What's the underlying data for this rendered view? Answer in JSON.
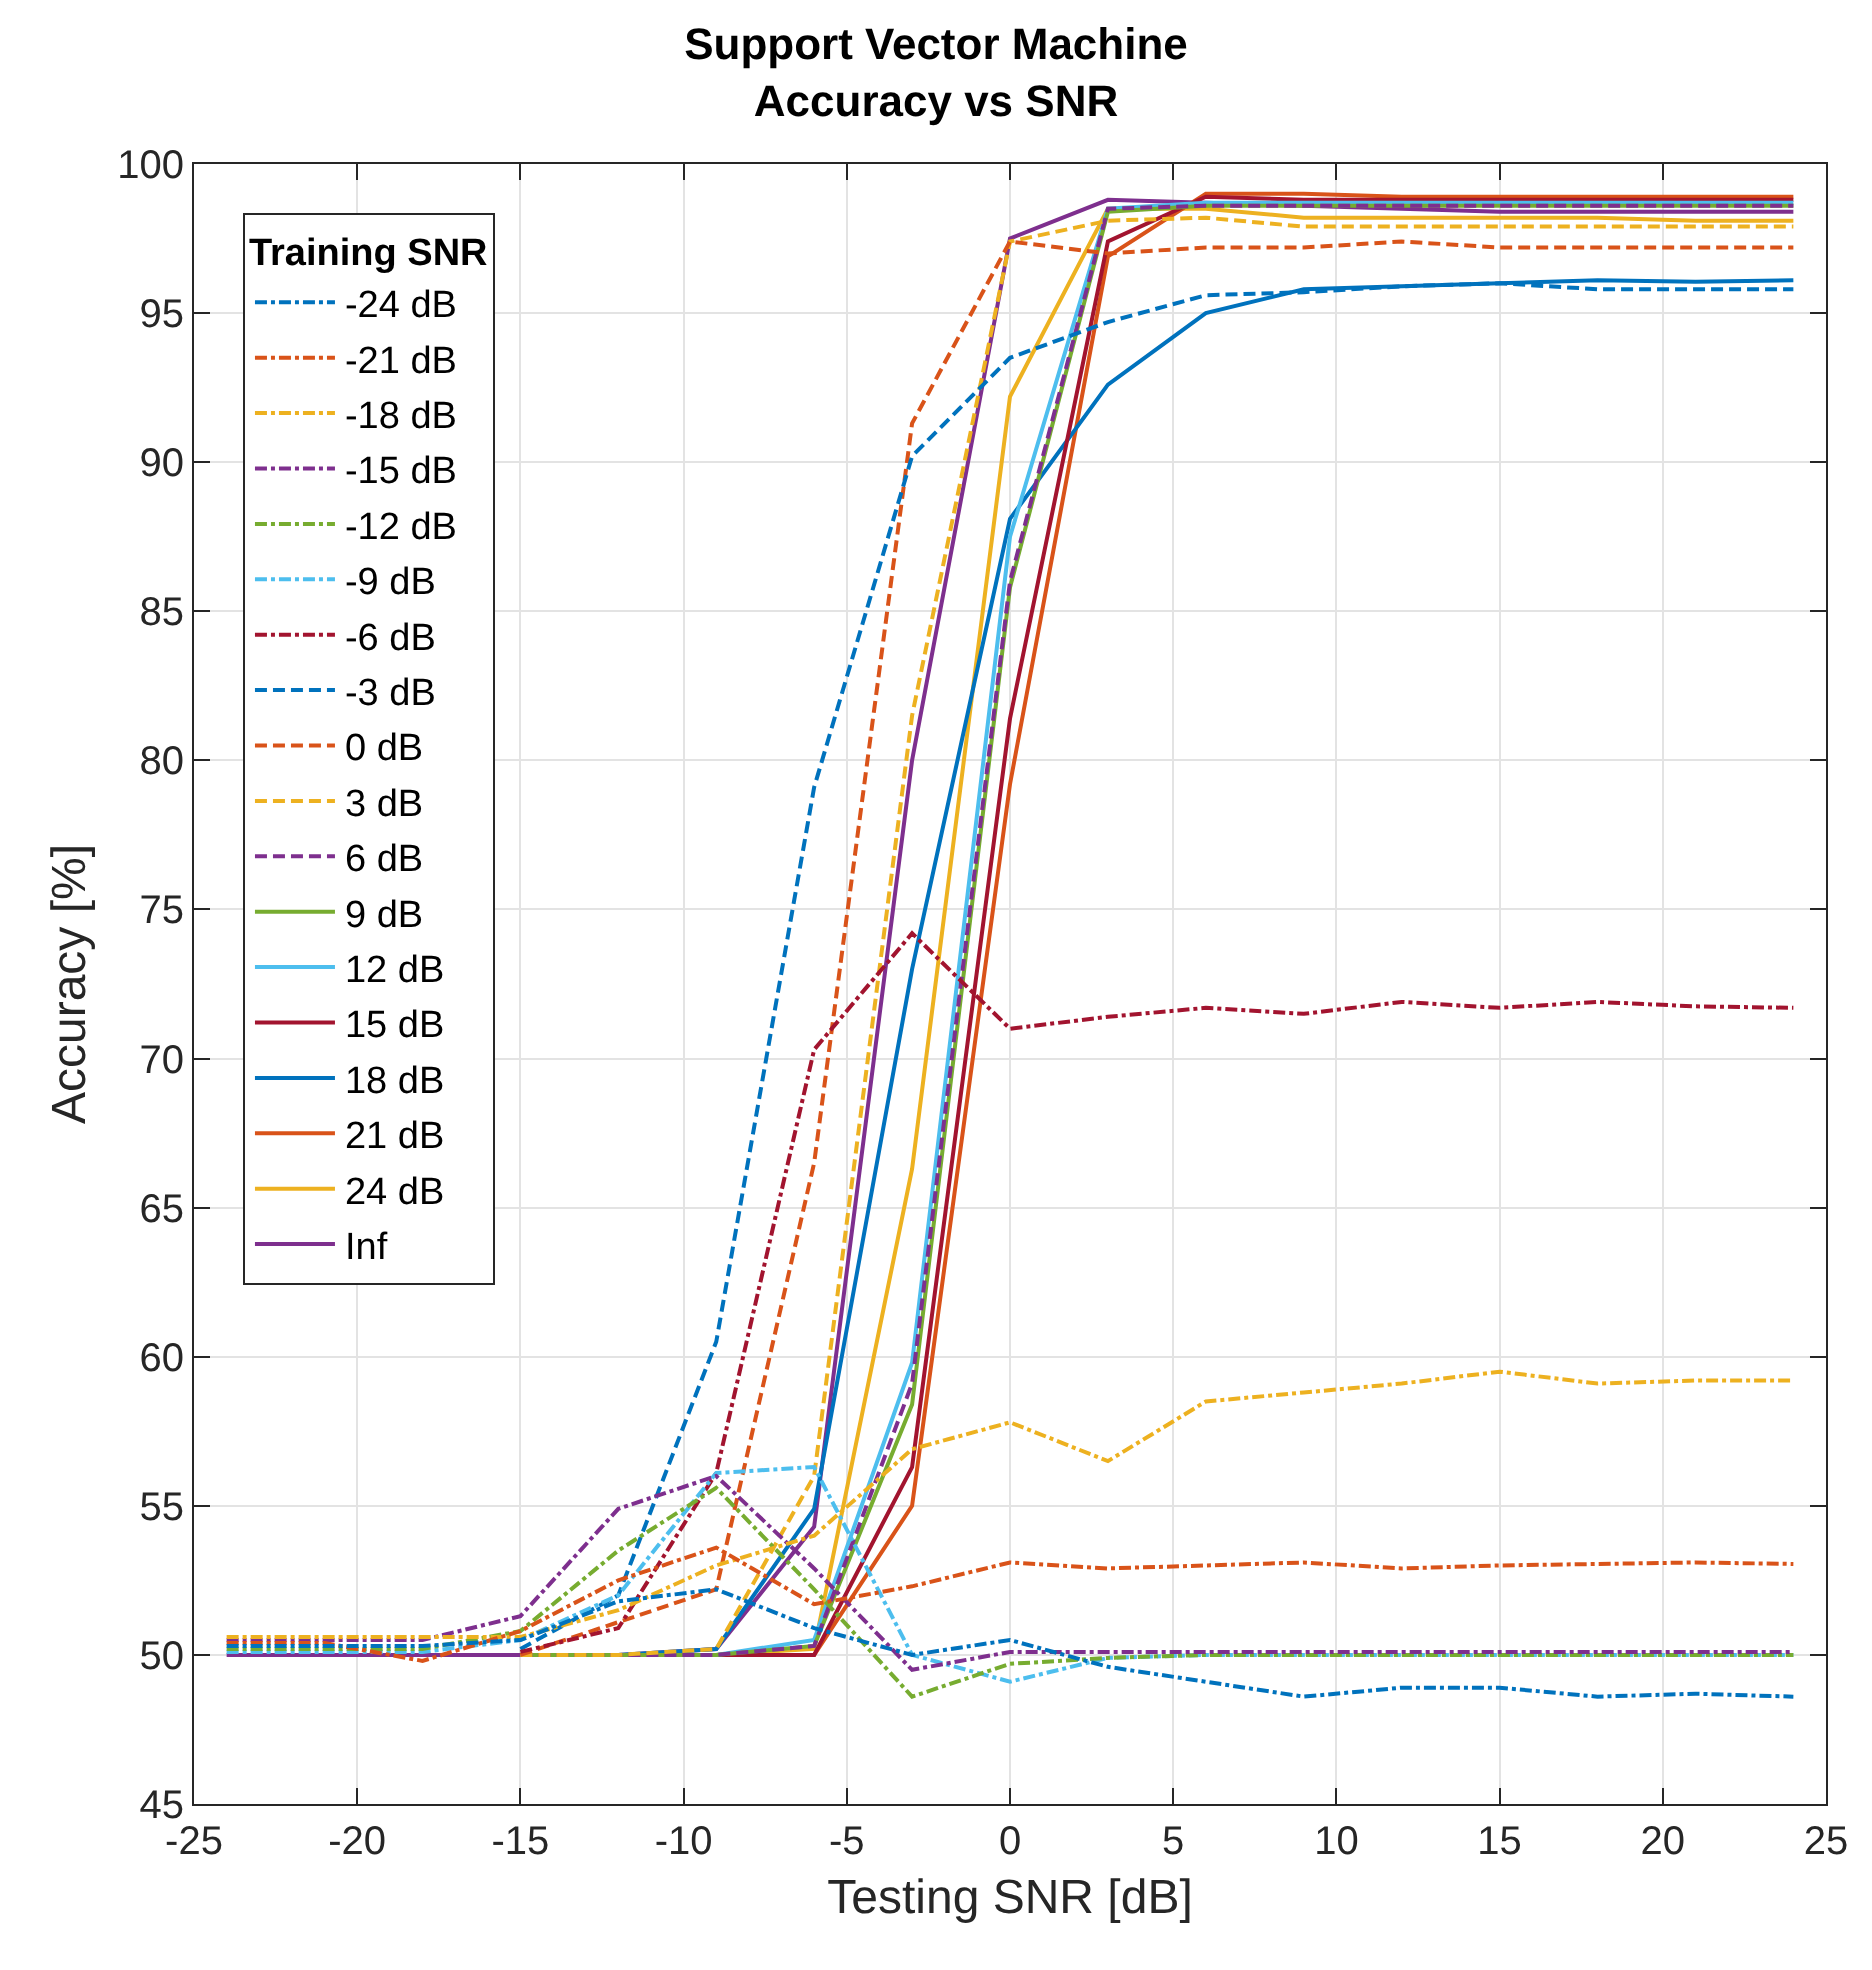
{
  "chart_data": {
    "type": "line",
    "title": "Support Vector Machine\nAccuracy vs SNR",
    "xlabel": "Testing SNR [dB]",
    "ylabel": "Accuracy [%]",
    "legend_title": "Training SNR",
    "x": [
      -24,
      -21,
      -18,
      -15,
      -12,
      -9,
      -6,
      -3,
      0,
      3,
      6,
      9,
      12,
      15,
      18,
      21,
      24
    ],
    "xlim": [
      -25,
      25
    ],
    "xticks": [
      -25,
      -20,
      -15,
      -10,
      -5,
      0,
      5,
      10,
      15,
      20,
      25
    ],
    "ylim": [
      45,
      100
    ],
    "yticks": [
      45,
      50,
      55,
      60,
      65,
      70,
      75,
      80,
      85,
      90,
      95,
      100
    ],
    "grid": true,
    "legend": "top left",
    "marker": "none",
    "series": [
      {
        "name": "-24 dB",
        "color": "#0072bd",
        "line_style": "dashdot",
        "values": [
          50.3,
          50.3,
          50.3,
          50.5,
          51.8,
          52.2,
          50.9,
          50.0,
          50.5,
          49.6,
          49.1,
          48.6,
          48.9,
          48.9,
          48.6,
          48.7,
          48.6
        ]
      },
      {
        "name": "-21 dB",
        "color": "#d95319",
        "line_style": "dashdot",
        "values": [
          50.4,
          50.4,
          49.8,
          50.8,
          52.5,
          53.6,
          51.7,
          52.3,
          53.1,
          52.9,
          53.0,
          53.1,
          52.9,
          53.0,
          53.05,
          53.1,
          53.05
        ]
      },
      {
        "name": "-18 dB",
        "color": "#edb120",
        "line_style": "dashdot",
        "values": [
          50.6,
          50.6,
          50.6,
          50.6,
          51.5,
          53.0,
          54.0,
          56.9,
          57.8,
          56.5,
          58.5,
          58.8,
          59.1,
          59.5,
          59.1,
          59.2,
          59.2
        ]
      },
      {
        "name": "-15 dB",
        "color": "#7e2f8e",
        "line_style": "dashdot",
        "values": [
          50.5,
          50.5,
          50.5,
          51.3,
          54.9,
          56.0,
          52.9,
          49.5,
          50.1,
          50.1,
          50.1,
          50.1,
          50.1,
          50.1,
          50.1,
          50.1,
          50.1
        ]
      },
      {
        "name": "-12 dB",
        "color": "#77ac30",
        "line_style": "dashdot",
        "values": [
          50.2,
          50.2,
          50.2,
          50.8,
          53.5,
          55.6,
          52.2,
          48.6,
          49.7,
          49.9,
          50.0,
          50.0,
          50.0,
          50.0,
          50.0,
          50.0,
          50.0
        ]
      },
      {
        "name": "-9 dB",
        "color": "#4dbeee",
        "line_style": "dashdot",
        "values": [
          50.1,
          50.1,
          50.1,
          50.5,
          52.0,
          56.1,
          56.3,
          50.0,
          49.1,
          49.9,
          50.0,
          50.0,
          50.0,
          50.0,
          50.0,
          50.0,
          50.0
        ]
      },
      {
        "name": "-6 dB",
        "color": "#a2142f",
        "line_style": "dashdot",
        "values": [
          null,
          null,
          null,
          50.1,
          50.9,
          56.1,
          70.3,
          74.2,
          71.0,
          71.4,
          71.7,
          71.5,
          71.9,
          71.7,
          71.9,
          71.75,
          71.7
        ]
      },
      {
        "name": "-3 dB",
        "color": "#0072bd",
        "line_style": "dashed",
        "values": [
          null,
          null,
          null,
          50.2,
          52.0,
          60.5,
          79.1,
          90.2,
          93.5,
          94.7,
          95.6,
          95.7,
          95.9,
          96.0,
          95.8,
          95.8,
          95.8
        ]
      },
      {
        "name": "0 dB",
        "color": "#d95319",
        "line_style": "dashed",
        "values": [
          null,
          null,
          null,
          50.0,
          51.1,
          52.2,
          66.5,
          91.3,
          97.4,
          97.0,
          97.2,
          97.2,
          97.4,
          97.2,
          97.2,
          97.2,
          97.2
        ]
      },
      {
        "name": "3 dB",
        "color": "#edb120",
        "line_style": "dashed",
        "values": [
          null,
          null,
          null,
          50.0,
          50.0,
          50.2,
          56.0,
          81.5,
          97.4,
          98.1,
          98.2,
          97.9,
          97.9,
          97.9,
          97.9,
          97.9,
          97.9
        ]
      },
      {
        "name": "6 dB",
        "color": "#7e2f8e",
        "line_style": "dashed",
        "values": [
          null,
          null,
          null,
          50.0,
          50.0,
          50.0,
          50.3,
          59.1,
          86.0,
          98.5,
          98.6,
          98.6,
          98.6,
          98.6,
          98.6,
          98.6,
          98.6
        ]
      },
      {
        "name": "9 dB",
        "color": "#77ac30",
        "line_style": "solid",
        "values": [
          null,
          null,
          null,
          50.0,
          50.0,
          50.0,
          50.3,
          58.4,
          85.8,
          98.4,
          98.6,
          98.6,
          98.6,
          98.6,
          98.6,
          98.6,
          98.6
        ]
      },
      {
        "name": "12 dB",
        "color": "#4dbeee",
        "line_style": "solid",
        "values": [
          null,
          null,
          null,
          50.0,
          50.0,
          50.0,
          50.5,
          59.8,
          87.5,
          98.5,
          98.7,
          98.7,
          98.7,
          98.7,
          98.7,
          98.7,
          98.7
        ]
      },
      {
        "name": "15 dB",
        "color": "#a2142f",
        "line_style": "solid",
        "values": [
          null,
          null,
          null,
          50.0,
          50.0,
          50.0,
          50.0,
          56.3,
          81.4,
          97.4,
          98.9,
          98.8,
          98.8,
          98.8,
          98.8,
          98.8,
          98.8
        ]
      },
      {
        "name": "18 dB",
        "color": "#0072bd",
        "line_style": "solid",
        "values": [
          null,
          null,
          null,
          50.0,
          50.0,
          50.2,
          54.9,
          73.0,
          88.1,
          92.6,
          95.0,
          95.8,
          95.9,
          96.0,
          96.1,
          96.05,
          96.1
        ]
      },
      {
        "name": "21 dB",
        "color": "#d95319",
        "line_style": "solid",
        "values": [
          null,
          null,
          null,
          50.0,
          50.0,
          50.0,
          50.0,
          55.0,
          79.2,
          96.9,
          99.0,
          99.0,
          98.9,
          98.9,
          98.9,
          98.9,
          98.9
        ]
      },
      {
        "name": "24 dB",
        "color": "#edb120",
        "line_style": "solid",
        "values": [
          null,
          null,
          null,
          50.0,
          50.0,
          50.0,
          50.2,
          66.3,
          92.2,
          98.5,
          98.5,
          98.2,
          98.2,
          98.2,
          98.2,
          98.1,
          98.1
        ]
      },
      {
        "name": "Inf",
        "color": "#7e2f8e",
        "line_style": "solid",
        "values": [
          50.0,
          50.0,
          50.0,
          50.0,
          50.0,
          50.2,
          54.3,
          80.0,
          97.5,
          98.8,
          98.7,
          98.6,
          98.5,
          98.4,
          98.4,
          98.4,
          98.4
        ]
      }
    ]
  }
}
